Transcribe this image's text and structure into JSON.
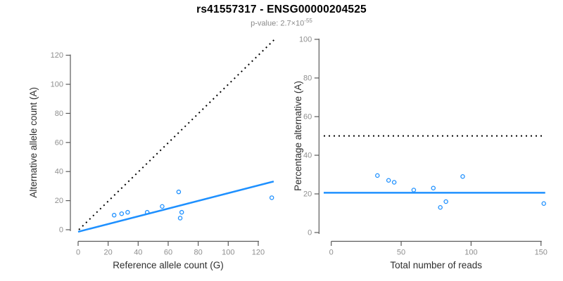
{
  "title": "rs41557317 - ENSG00000204525",
  "subtitle": {
    "prefix": "p-value: 2.7×10",
    "exponent": "-55"
  },
  "colors": {
    "points": "#1E90FF",
    "fit_line": "#1E90FF",
    "reference_line": "#000000",
    "axis": "#5a5a5a",
    "tick_label": "#8f8f8f",
    "axis_title": "#2e2e2e",
    "title": "#000000",
    "subtitle": "#8a8a8a",
    "background": "#ffffff"
  },
  "chart_data": [
    {
      "name": "allele-count-panel",
      "type": "scatter",
      "xlabel": "Reference allele count (G)",
      "ylabel": "Alternative allele count (A)",
      "xticks": [
        0,
        20,
        40,
        60,
        80,
        100,
        120
      ],
      "yticks": [
        0,
        20,
        40,
        60,
        80,
        100,
        120
      ],
      "xlim": [
        -5,
        135
      ],
      "ylim": [
        -6,
        132
      ],
      "grid": false,
      "points": [
        [
          24,
          10
        ],
        [
          29,
          11
        ],
        [
          33,
          12
        ],
        [
          46,
          12
        ],
        [
          56,
          16
        ],
        [
          67,
          26
        ],
        [
          68,
          8
        ],
        [
          69,
          12
        ],
        [
          129,
          22
        ]
      ],
      "lines": [
        {
          "name": "identity-50pct-line",
          "style": "dotted",
          "color": "#000000",
          "from": [
            0.5,
            0
          ],
          "to": [
            130.5,
            130.5
          ]
        },
        {
          "name": "fit-line",
          "style": "solid",
          "color": "#1E90FF",
          "from": [
            0,
            -1.4
          ],
          "to": [
            130.3,
            33.2
          ]
        }
      ],
      "layout": {
        "x0px": 111,
        "xScale": 2.133,
        "y0px": 327,
        "yScale": 2.07,
        "yAxisX": 100,
        "xAxisY": 343.5,
        "ylabelX": 52
      }
    },
    {
      "name": "percentage-panel",
      "type": "scatter",
      "xlabel": "Total number of reads",
      "ylabel": "Percentage alternative (A)",
      "xticks": [
        0,
        50,
        100,
        150
      ],
      "yticks": [
        0,
        20,
        40,
        60,
        80,
        100
      ],
      "xlim": [
        -6,
        154
      ],
      "ylim": [
        -5,
        100
      ],
      "grid": false,
      "points": [
        [
          33,
          29.5
        ],
        [
          41,
          27
        ],
        [
          45,
          26
        ],
        [
          59,
          22
        ],
        [
          73,
          23
        ],
        [
          78,
          13
        ],
        [
          82,
          16
        ],
        [
          94,
          29
        ],
        [
          152,
          15
        ]
      ],
      "lines": [
        {
          "name": "fifty-percent-line",
          "style": "dotted",
          "color": "#000000",
          "from": [
            -5.4,
            50
          ],
          "to": [
            153,
            50
          ]
        },
        {
          "name": "mean-percentage-line",
          "style": "solid",
          "color": "#1E90FF",
          "from": [
            -5.4,
            20.6
          ],
          "to": [
            153,
            20.6
          ]
        }
      ],
      "layout": {
        "x0px": 470.7,
        "xScale": 1.987,
        "y0px": 331,
        "yScale": 2.75,
        "yAxisX": 453.3,
        "xAxisY": 343.5,
        "ylabelX": 428
      }
    }
  ]
}
